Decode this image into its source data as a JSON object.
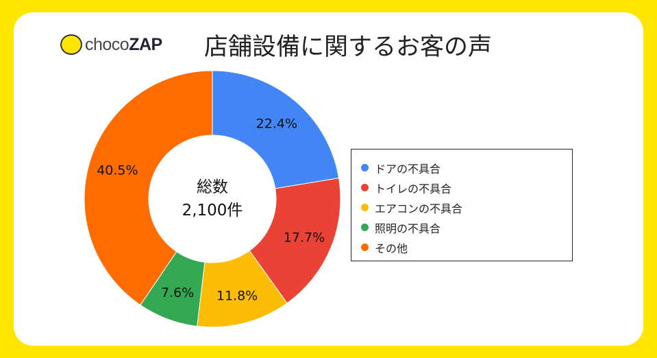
{
  "logo": {
    "text_a": "choco",
    "text_b": "ZAP"
  },
  "title": "店舗設備に関するお客の声",
  "center_label": {
    "line1": "総数",
    "line2": "2,100件"
  },
  "chart_data": {
    "type": "pie",
    "title": "店舗設備に関するお客の声",
    "donut": true,
    "legend_position": "right",
    "categories": [
      "ドアの不具合",
      "トイレの不具合",
      "エアコンの不具合",
      "照明の不具合",
      "その他"
    ],
    "values": [
      22.4,
      17.7,
      11.8,
      7.6,
      40.5
    ],
    "labels": [
      "22.4%",
      "17.7%",
      "11.8%",
      "7.6%",
      "40.5%"
    ],
    "colors": [
      "#4285F4",
      "#EA4335",
      "#FBBC04",
      "#34A853",
      "#FF6D01"
    ],
    "total": "2,100件"
  }
}
